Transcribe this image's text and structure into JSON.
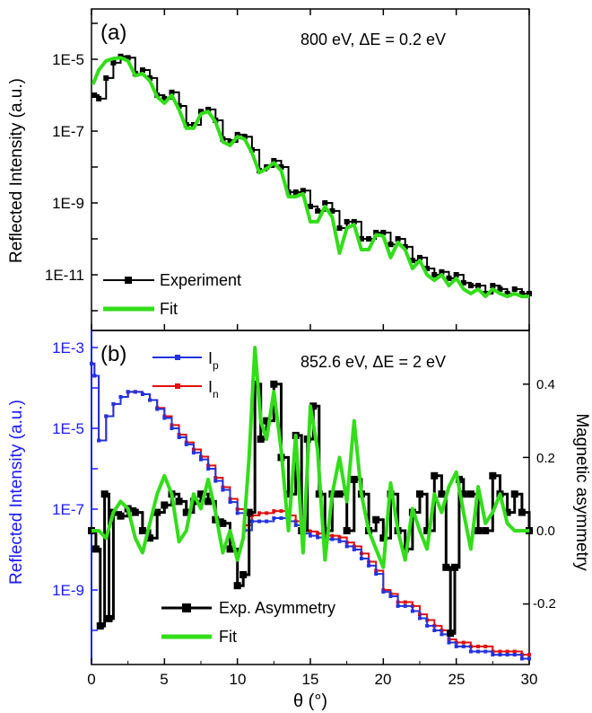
{
  "figure": {
    "x_axis_label": "θ (°)",
    "x_ticks": [
      "0",
      "5",
      "10",
      "15",
      "20",
      "25",
      "30"
    ]
  },
  "panel_a": {
    "label": "(a)",
    "annotation": "800 eV, ΔE = 0.2 eV",
    "ylabel": "Reflected Intensity (a.u.)",
    "yticks": [
      "1E-5",
      "1E-7",
      "1E-9",
      "1E-11"
    ],
    "legend": {
      "experiment": "Experiment",
      "fit": "Fit"
    }
  },
  "panel_b": {
    "label": "(b)",
    "annotation": "852.6 eV, ΔE = 2 eV",
    "ylabel_left": "Reflected Intensity (a.u.)",
    "ylabel_right": "Magnetic asymmetry",
    "yticks_left": [
      "1E-3",
      "1E-5",
      "1E-7",
      "1E-9"
    ],
    "yticks_right": [
      "0.4",
      "0.2",
      "0.0",
      "-0.2"
    ],
    "legend_top": {
      "ip_main": "I",
      "ip_sub": "p",
      "in_main": "I",
      "in_sub": "n"
    },
    "legend_bottom": {
      "asym": "Exp. Asymmetry",
      "fit": "Fit"
    }
  },
  "colors": {
    "experiment": "#000000",
    "fit": "#33dd1a",
    "ip": "#2233dd",
    "in": "#e01010",
    "left_axis_b": "#1a1aff"
  },
  "chart_data": [
    {
      "type": "line",
      "panel": "a",
      "xlabel": "θ (°)",
      "ylabel": "Reflected Intensity (a.u.)",
      "xlim": [
        0,
        30
      ],
      "ylim": [
        1e-12,
        0.0001
      ],
      "yscale": "log",
      "series": [
        {
          "name": "Experiment",
          "x": [
            0.2,
            0.5,
            1,
            1.5,
            2,
            2.5,
            3,
            3.5,
            4,
            4.5,
            5,
            5.5,
            6,
            6.5,
            7,
            7.5,
            8,
            8.5,
            9,
            9.5,
            10,
            10.5,
            11,
            11.5,
            12,
            12.5,
            13,
            13.5,
            14,
            14.5,
            15,
            15.5,
            16,
            16.5,
            17,
            17.5,
            18,
            18.5,
            19,
            19.5,
            20,
            20.5,
            21,
            21.5,
            22,
            22.5,
            23,
            23.5,
            24,
            24.5,
            25,
            25.5,
            26,
            26.5,
            27,
            27.5,
            28,
            28.5,
            29,
            29.5,
            30
          ],
          "y": [
            1e-06,
            8e-07,
            3e-06,
            8e-06,
            1.2e-05,
            1.1e-05,
            4e-06,
            5e-06,
            3e-06,
            1e-06,
            8e-07,
            1.2e-06,
            5e-07,
            1.5e-07,
            1.5e-07,
            3.5e-07,
            4e-07,
            2e-07,
            6e-08,
            5e-08,
            8e-08,
            7e-08,
            3e-08,
            8e-09,
            1e-08,
            1.5e-08,
            1e-08,
            2e-09,
            2e-09,
            2.2e-09,
            8e-10,
            6e-10,
            1e-09,
            6e-10,
            2e-10,
            3e-10,
            3e-10,
            1e-10,
            1e-10,
            1.5e-10,
            1.5e-10,
            7e-11,
            1e-10,
            6e-11,
            2.5e-11,
            3e-11,
            1.5e-11,
            1e-11,
            1.2e-11,
            8e-12,
            1e-11,
            6e-12,
            5e-12,
            5e-12,
            3e-12,
            5e-12,
            4e-12,
            3e-12,
            4e-12,
            3e-12,
            3e-12
          ]
        },
        {
          "name": "Fit",
          "x": [
            0.1,
            0.5,
            1,
            1.5,
            2,
            2.5,
            3,
            3.5,
            4,
            4.5,
            5,
            5.5,
            6,
            6.5,
            7,
            7.5,
            8,
            8.5,
            9,
            9.5,
            10,
            10.5,
            11,
            11.5,
            12,
            12.5,
            13,
            13.5,
            14,
            14.5,
            15,
            15.5,
            16,
            16.5,
            17,
            17.5,
            18,
            18.5,
            19,
            19.5,
            20,
            20.5,
            21,
            21.5,
            22,
            22.5,
            23,
            23.5,
            24,
            24.5,
            25,
            25.5,
            26,
            26.5,
            27,
            27.5,
            28,
            28.5,
            29,
            29.5,
            30
          ],
          "y": [
            2e-06,
            5e-06,
            9e-06,
            1.05e-05,
            1.1e-05,
            9e-06,
            3.5e-06,
            4e-06,
            2.5e-06,
            9e-07,
            6e-07,
            1e-06,
            4e-07,
            1.2e-07,
            1.2e-07,
            3e-07,
            3.5e-07,
            1.8e-07,
            5e-08,
            4e-08,
            7e-08,
            6e-08,
            2.5e-08,
            7e-09,
            9e-09,
            1.3e-08,
            8e-09,
            1.5e-09,
            1.5e-09,
            1.8e-09,
            3e-10,
            3e-10,
            8e-10,
            4e-10,
            4e-11,
            2e-10,
            2.5e-10,
            5e-11,
            5e-11,
            1.3e-10,
            1.2e-10,
            3e-11,
            8e-11,
            5e-11,
            1.5e-11,
            2.5e-11,
            1e-11,
            7e-12,
            1e-11,
            5e-12,
            8e-12,
            4e-12,
            3e-12,
            4e-12,
            2.5e-12,
            4e-12,
            3e-12,
            2.5e-12,
            3e-12,
            2.5e-12,
            2.5e-12
          ]
        }
      ]
    },
    {
      "type": "line",
      "panel": "b",
      "xlabel": "θ (°)",
      "ylabel": "Reflected Intensity (a.u.)",
      "y2label": "Magnetic asymmetry",
      "xlim": [
        0,
        30
      ],
      "ylim": [
        1e-11,
        0.001
      ],
      "yscale": "log",
      "y2lim": [
        -0.34,
        0.54
      ],
      "series": [
        {
          "name": "I_p",
          "axis": "left",
          "x": [
            0,
            0.2,
            0.5,
            1,
            1.5,
            2,
            2.5,
            3,
            3.5,
            4,
            4.5,
            5,
            5.5,
            6,
            6.5,
            7,
            7.5,
            8,
            8.5,
            9,
            9.5,
            10,
            10.5,
            11,
            11.5,
            12,
            12.5,
            13,
            13.5,
            14,
            14.5,
            15,
            15.5,
            16,
            16.5,
            17,
            17.5,
            18,
            18.5,
            19,
            19.5,
            20,
            20.5,
            21,
            21.5,
            22,
            22.5,
            23,
            23.5,
            24,
            24.5,
            25,
            25.5,
            26,
            26.5,
            27,
            27.5,
            28,
            28.5,
            29,
            29.5,
            30
          ],
          "y": [
            0.0004,
            0.0002,
            5e-06,
            2e-05,
            4e-05,
            6e-05,
            8e-05,
            8e-05,
            7e-05,
            5e-05,
            3e-05,
            1.8e-05,
            1e-05,
            6e-06,
            4e-06,
            2.5e-06,
            1.7e-06,
            1e-06,
            5e-07,
            3e-07,
            1.5e-07,
            8e-08,
            3e-08,
            5e-08,
            5e-08,
            5e-08,
            6e-08,
            6e-08,
            5e-08,
            4e-08,
            2.5e-08,
            2.2e-08,
            2e-08,
            1.8e-08,
            1.8e-08,
            1.6e-08,
            1.2e-08,
            1e-08,
            6e-09,
            4e-09,
            2.5e-09,
            9e-10,
            7e-10,
            4e-10,
            4e-10,
            3e-10,
            2e-10,
            1.3e-10,
            1e-10,
            8e-11,
            5e-11,
            4e-11,
            4e-11,
            3e-11,
            3e-11,
            3e-11,
            2.5e-11,
            2.5e-11,
            2.5e-11,
            2.5e-11,
            2e-11,
            2e-11
          ]
        },
        {
          "name": "I_n",
          "axis": "left",
          "x": [
            0,
            0.2,
            0.5,
            1,
            1.5,
            2,
            2.5,
            3,
            3.5,
            4,
            4.5,
            5,
            5.5,
            6,
            6.5,
            7,
            7.5,
            8,
            8.5,
            9,
            9.5,
            10,
            10.5,
            11,
            11.5,
            12,
            12.5,
            13,
            13.5,
            14,
            14.5,
            15,
            15.5,
            16,
            16.5,
            17,
            17.5,
            18,
            18.5,
            19,
            19.5,
            20,
            20.5,
            21,
            21.5,
            22,
            22.5,
            23,
            23.5,
            24,
            24.5,
            25,
            25.5,
            26,
            26.5,
            27,
            27.5,
            28,
            28.5,
            29,
            29.5,
            30
          ],
          "y": [
            0.0004,
            0.0002,
            5e-06,
            2e-05,
            4e-05,
            6e-05,
            8e-05,
            8e-05,
            7e-05,
            5e-05,
            3.2e-05,
            2e-05,
            1.2e-05,
            7e-06,
            4.5e-06,
            3e-06,
            2e-06,
            1.2e-06,
            6e-07,
            3.5e-07,
            1.8e-07,
            1e-07,
            4e-08,
            7e-08,
            8e-08,
            8e-08,
            9e-08,
            9e-08,
            7e-08,
            5e-08,
            3e-08,
            2.8e-08,
            2.5e-08,
            2.2e-08,
            2.2e-08,
            2e-08,
            1.5e-08,
            1.2e-08,
            8e-09,
            5e-09,
            3e-09,
            1e-09,
            8e-10,
            5e-10,
            5e-10,
            4e-10,
            2.5e-10,
            1.8e-10,
            1.3e-10,
            1e-10,
            6e-11,
            5e-11,
            5e-11,
            4e-11,
            4e-11,
            4e-11,
            3e-11,
            3e-11,
            3e-11,
            3e-11,
            2.5e-11,
            2.5e-11
          ]
        },
        {
          "name": "Exp. Asymmetry",
          "axis": "right",
          "x": [
            0,
            0.3,
            0.6,
            0.9,
            1.2,
            1.5,
            2,
            2.5,
            3,
            3.5,
            4,
            4.5,
            5,
            5.5,
            6,
            6.5,
            7,
            7.5,
            8,
            8.5,
            9,
            9.5,
            10,
            10.4,
            10.8,
            11.2,
            11.6,
            12,
            12.5,
            13,
            13.5,
            14,
            14.4,
            14.8,
            15.2,
            15.6,
            16,
            16.5,
            17,
            17.5,
            18,
            18.5,
            19,
            19.5,
            20,
            20.5,
            21,
            21.5,
            22,
            22.5,
            23,
            23.5,
            24,
            24.3,
            24.6,
            24.9,
            25.2,
            25.5,
            26,
            26.5,
            27,
            27.5,
            28,
            28.5,
            29,
            29.5,
            30
          ],
          "y": [
            0.0,
            -0.05,
            -0.26,
            0.1,
            -0.24,
            0.05,
            0.04,
            0.06,
            0.05,
            0.0,
            -0.02,
            0.05,
            0.07,
            0.1,
            0.08,
            0.05,
            0.08,
            0.1,
            0.08,
            0.03,
            0.02,
            -0.05,
            -0.15,
            -0.12,
            0.05,
            0.4,
            0.25,
            0.3,
            0.4,
            0.2,
            0.1,
            0.26,
            0.0,
            0.25,
            0.34,
            0.1,
            0.0,
            0.1,
            0.1,
            0.0,
            0.14,
            0.1,
            0.0,
            0.03,
            -0.02,
            0.1,
            0.0,
            -0.05,
            0.05,
            0.1,
            0.0,
            0.15,
            0.1,
            -0.1,
            -0.28,
            -0.1,
            0.14,
            0.1,
            0.1,
            0.0,
            0.0,
            0.15,
            0.1,
            0.05,
            0.1,
            0.05,
            0.0
          ]
        },
        {
          "name": "Fit",
          "axis": "right",
          "x": [
            0,
            0.5,
            1,
            1.5,
            2,
            2.5,
            3,
            3.5,
            4,
            4.5,
            5,
            5.5,
            6,
            6.5,
            7,
            7.5,
            8,
            8.5,
            9,
            9.5,
            10,
            10.4,
            10.8,
            11.2,
            11.6,
            12,
            12.5,
            13,
            13.5,
            14,
            14.5,
            15,
            15.5,
            16,
            16.5,
            17,
            17.5,
            18,
            18.5,
            19,
            19.5,
            20,
            20.5,
            21,
            21.5,
            22,
            22.5,
            23,
            23.5,
            24,
            24.5,
            25,
            25.5,
            26,
            26.5,
            27,
            27.5,
            28,
            28.5,
            29,
            29.5,
            30
          ],
          "y": [
            0.0,
            0.0,
            -0.02,
            0.05,
            0.08,
            0.06,
            -0.02,
            -0.06,
            0.02,
            0.1,
            0.15,
            0.1,
            -0.03,
            0.0,
            0.1,
            0.06,
            0.14,
            0.05,
            -0.06,
            0.0,
            -0.08,
            -0.02,
            0.2,
            0.5,
            0.3,
            0.25,
            0.38,
            0.22,
            0.0,
            0.26,
            -0.06,
            0.34,
            0.22,
            -0.08,
            0.1,
            0.2,
            0.08,
            0.3,
            0.1,
            0.0,
            -0.05,
            -0.1,
            0.13,
            0.0,
            -0.08,
            0.06,
            0.0,
            -0.05,
            0.1,
            0.05,
            0.12,
            0.16,
            0.05,
            -0.05,
            0.12,
            0.02,
            0.05,
            0.1,
            0.02,
            0.0,
            0.0,
            0.0
          ]
        }
      ]
    }
  ]
}
